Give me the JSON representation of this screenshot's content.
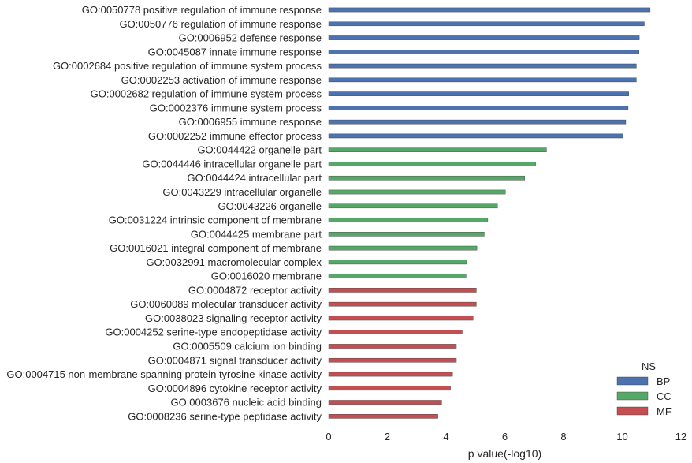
{
  "chart_data": {
    "type": "bar",
    "orientation": "horizontal",
    "xlabel": "p value(-log10)",
    "xlim": [
      0,
      12
    ],
    "xticks": [
      0,
      2,
      4,
      6,
      8,
      10,
      12
    ],
    "grid": false,
    "legend_title": "NS",
    "legend_position": "bottom-right",
    "colors": {
      "BP": "#4c72b0",
      "CC": "#55a868",
      "MF": "#c44e52"
    },
    "series": [
      {
        "name": "BP",
        "categories": [
          "GO:0050778 positive regulation of immune response",
          "GO:0050776 regulation of immune response",
          "GO:0006952 defense response",
          "GO:0045087 innate immune response",
          "GO:0002684 positive regulation of immune system process",
          "GO:0002253 activation of immune response",
          "GO:0002682 regulation of immune system process",
          "GO:0002376 immune system process",
          "GO:0006955 immune response",
          "GO:0002252 immune effector process"
        ],
        "values": [
          10.95,
          10.75,
          10.58,
          10.57,
          10.48,
          10.48,
          10.22,
          10.2,
          10.12,
          10.02
        ]
      },
      {
        "name": "CC",
        "categories": [
          "GO:0044422 organelle part",
          "GO:0044446 intracellular organelle part",
          "GO:0044424 intracellular part",
          "GO:0043229 intracellular organelle",
          "GO:0043226 organelle",
          "GO:0031224 intrinsic component of membrane",
          "GO:0044425 membrane part",
          "GO:0016021 integral component of membrane",
          "GO:0032991 macromolecular complex",
          "GO:0016020 membrane"
        ],
        "values": [
          7.42,
          7.05,
          6.68,
          6.02,
          5.75,
          5.42,
          5.3,
          5.05,
          4.7,
          4.68
        ]
      },
      {
        "name": "MF",
        "categories": [
          "GO:0004872 receptor activity",
          "GO:0060089 molecular transducer activity",
          "GO:0038023 signaling receptor activity",
          "GO:0004252 serine-type endopeptidase activity",
          "GO:0005509 calcium ion binding",
          "GO:0004871 signal transducer activity",
          "GO:0004715 non-membrane spanning protein tyrosine kinase activity",
          "GO:0004896 cytokine receptor activity",
          "GO:0003676 nucleic acid binding",
          "GO:0008236 serine-type peptidase activity"
        ],
        "values": [
          5.03,
          5.03,
          4.92,
          4.55,
          4.35,
          4.35,
          4.22,
          4.15,
          3.85,
          3.72
        ]
      }
    ]
  }
}
